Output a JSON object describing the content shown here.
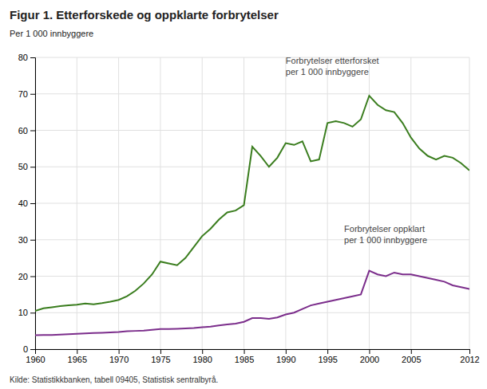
{
  "chart_data": {
    "type": "line",
    "title": "Figur 1. Etterforskede og oppklarte forbrytelser",
    "y_label": "Per 1 000 innbyggere",
    "footnote": "Kilde: Statistikkbanken, tabell 09405, Statistisk sentralbyrå.",
    "x": [
      1960,
      1961,
      1962,
      1963,
      1964,
      1965,
      1966,
      1967,
      1968,
      1969,
      1970,
      1971,
      1972,
      1973,
      1974,
      1975,
      1976,
      1977,
      1978,
      1979,
      1980,
      1981,
      1982,
      1983,
      1984,
      1985,
      1986,
      1987,
      1988,
      1989,
      1990,
      1991,
      1992,
      1993,
      1994,
      1995,
      1996,
      1997,
      1998,
      1999,
      2000,
      2001,
      2002,
      2003,
      2004,
      2005,
      2006,
      2007,
      2008,
      2009,
      2010,
      2011,
      2012
    ],
    "series": [
      {
        "color": "#3a7d1e",
        "values": [
          10.5,
          11.2,
          11.5,
          11.8,
          12.0,
          12.2,
          12.5,
          12.3,
          12.6,
          13.0,
          13.5,
          14.5,
          16.0,
          18.0,
          20.5,
          24.0,
          23.5,
          23.0,
          25.0,
          28.0,
          31.0,
          33.0,
          35.5,
          37.5,
          38.0,
          39.5,
          55.5,
          53.0,
          50.0,
          52.5,
          56.5,
          56.0,
          57.0,
          51.5,
          52.0,
          62.0,
          62.5,
          62.0,
          61.0,
          63.0,
          69.5,
          67.0,
          65.5,
          65.0,
          62.0,
          58.0,
          55.0,
          53.0,
          52.0,
          53.0,
          52.5,
          51.0,
          49.0
        ]
      },
      {
        "color": "#7b2d8b",
        "values": [
          3.8,
          3.9,
          3.9,
          4.0,
          4.1,
          4.2,
          4.3,
          4.4,
          4.5,
          4.6,
          4.7,
          4.9,
          5.0,
          5.1,
          5.3,
          5.5,
          5.5,
          5.6,
          5.7,
          5.8,
          6.0,
          6.2,
          6.5,
          6.8,
          7.0,
          7.5,
          8.5,
          8.5,
          8.3,
          8.7,
          9.5,
          10.0,
          11.0,
          12.0,
          12.5,
          13.0,
          13.5,
          14.0,
          14.5,
          15.0,
          21.5,
          20.5,
          20.0,
          21.0,
          20.5,
          20.5,
          20.0,
          19.5,
          19.0,
          18.5,
          17.5,
          17.0,
          16.5
        ]
      }
    ],
    "annotations": [
      {
        "text": "Forbrytelser etterforsket\nper 1 000 innbyggere",
        "x": 1990,
        "y": 74.5
      },
      {
        "text": "Forbrytelser oppklart\nper 1 000 innbyggere",
        "x": 1997,
        "y": 28.5
      }
    ],
    "xlim": [
      1960,
      2012
    ],
    "xticks": [
      1960,
      1965,
      1970,
      1975,
      1980,
      1985,
      1990,
      1995,
      2000,
      2005,
      2012
    ],
    "ylim": [
      0,
      80
    ],
    "yticks": [
      0,
      10,
      20,
      30,
      40,
      50,
      60,
      70,
      80
    ],
    "grid": true
  }
}
